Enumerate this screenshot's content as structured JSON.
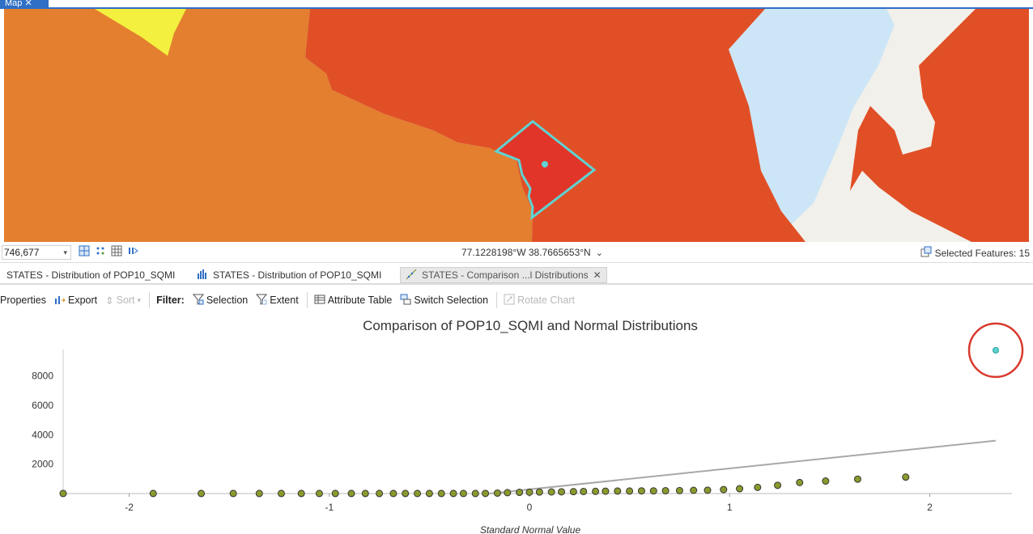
{
  "map_tab": {
    "label": "Map ✕"
  },
  "statusbar": {
    "scale": "746,677",
    "coordinates": "77.1228198°W 38.7665653°N",
    "selected_features": "Selected Features: 15"
  },
  "chart_tabs": [
    {
      "label": "STATES - Distribution of POP10_SQMI",
      "icon": "none"
    },
    {
      "label": "STATES - Distribution of POP10_SQMI",
      "icon": "histogram-icon"
    },
    {
      "label": "STATES - Comparison ...l Distributions",
      "icon": "qq-plot-icon",
      "close": "✕"
    }
  ],
  "toolbar": {
    "properties": "Properties",
    "export": "Export",
    "sort": "Sort",
    "filter_label": "Filter:",
    "selection": "Selection",
    "extent": "Extent",
    "attribute_table": "Attribute Table",
    "switch_selection": "Switch Selection",
    "rotate_chart": "Rotate Chart"
  },
  "colors": {
    "accent": "#2f6fc6",
    "orange_state": "#e37f2f",
    "red_state": "#e14f26",
    "dc_fill": "#e2352a",
    "selection_outline": "#5ed3d3",
    "water": "#cde6f7",
    "yellow_state": "#f4f03f",
    "point_fill": "#8c9a2d",
    "reference_line": "#a8a8a8",
    "annotation_circle": "#d93a2e"
  },
  "chart_data": {
    "type": "scatter",
    "title": "Comparison of POP10_SQMI and Normal Distributions",
    "xlabel": "Standard Normal Value",
    "ylabel": "",
    "xlim": [
      -2.33,
      2.33
    ],
    "ylim": [
      0,
      9800
    ],
    "xticks": [
      "-2",
      "-1",
      "0",
      "1",
      "2"
    ],
    "yticks": [
      "2000",
      "4000",
      "6000",
      "8000"
    ],
    "series": [
      {
        "points": [
          [
            -2.33,
            5
          ],
          [
            -1.88,
            5
          ],
          [
            -1.64,
            5
          ],
          [
            -1.48,
            5
          ],
          [
            -1.35,
            5
          ],
          [
            -1.24,
            5
          ],
          [
            -1.14,
            5
          ],
          [
            -1.05,
            5
          ],
          [
            -0.97,
            5
          ],
          [
            -0.89,
            5
          ],
          [
            -0.82,
            5
          ],
          [
            -0.75,
            5
          ],
          [
            -0.68,
            5
          ],
          [
            -0.62,
            5
          ],
          [
            -0.56,
            5
          ],
          [
            -0.5,
            5
          ],
          [
            -0.44,
            5
          ],
          [
            -0.38,
            5
          ],
          [
            -0.33,
            5
          ],
          [
            -0.27,
            5
          ],
          [
            -0.22,
            10
          ],
          [
            -0.16,
            30
          ],
          [
            -0.11,
            60
          ],
          [
            -0.05,
            80
          ],
          [
            0,
            90
          ],
          [
            0.05,
            100
          ],
          [
            0.11,
            110
          ],
          [
            0.16,
            120
          ],
          [
            0.22,
            130
          ],
          [
            0.27,
            140
          ],
          [
            0.33,
            150
          ],
          [
            0.38,
            160
          ],
          [
            0.44,
            170
          ],
          [
            0.5,
            170
          ],
          [
            0.56,
            180
          ],
          [
            0.62,
            180
          ],
          [
            0.68,
            190
          ],
          [
            0.75,
            200
          ],
          [
            0.82,
            220
          ],
          [
            0.89,
            230
          ],
          [
            0.97,
            270
          ],
          [
            1.05,
            330
          ],
          [
            1.14,
            420
          ],
          [
            1.24,
            560
          ],
          [
            1.35,
            750
          ],
          [
            1.48,
            850
          ],
          [
            1.64,
            980
          ],
          [
            1.88,
            1120
          ],
          [
            2.33,
            9750
          ]
        ]
      }
    ],
    "reference_line": {
      "from": [
        -0.2,
        0
      ],
      "to": [
        2.33,
        3600
      ]
    },
    "highlighted_point": [
      2.33,
      9750
    ]
  }
}
